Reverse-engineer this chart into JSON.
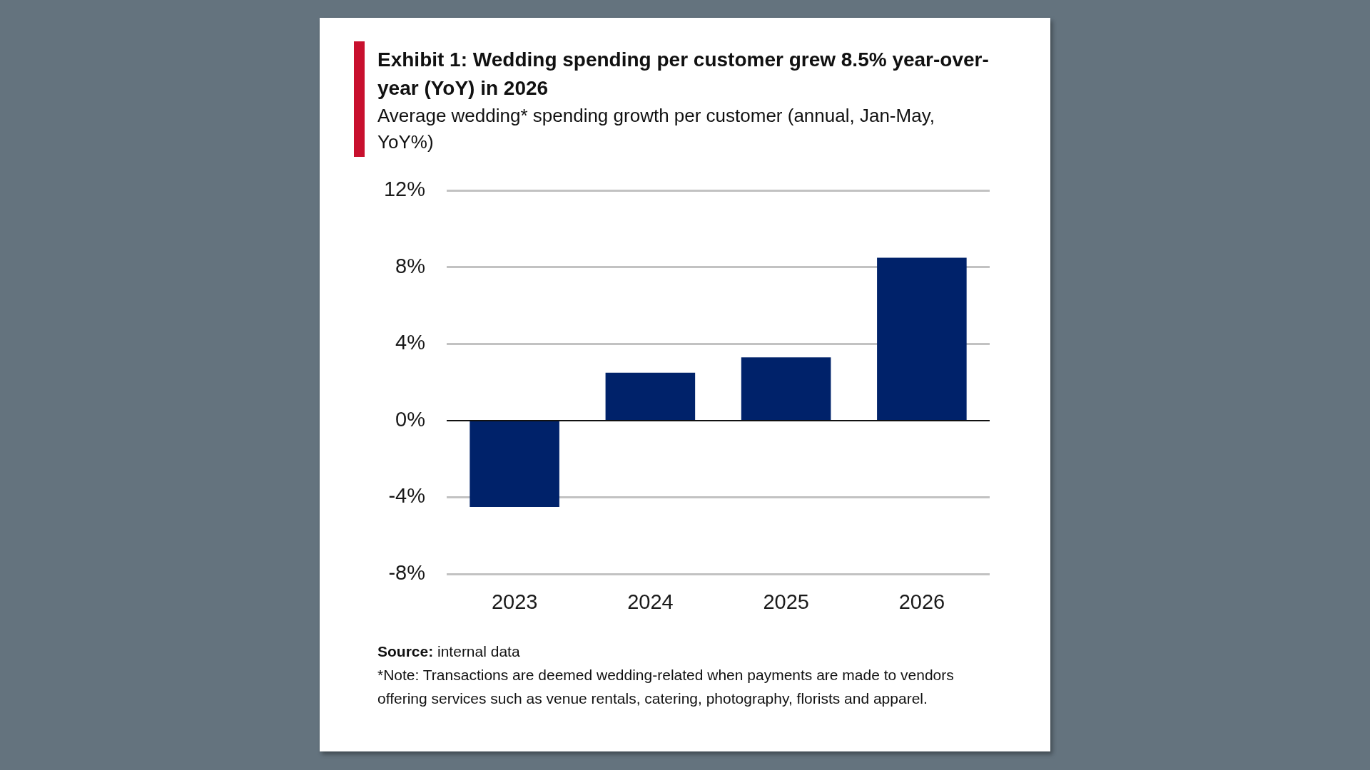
{
  "chart_data": {
    "type": "bar",
    "title": "Exhibit 1: Wedding spending per customer grew 8.5% year-over-year (YoY) in 2026",
    "subtitle": "Average wedding* spending growth per customer (annual, Jan-May, YoY%)",
    "categories": [
      "2023",
      "2024",
      "2025",
      "2026"
    ],
    "values": [
      -4.5,
      2.5,
      3.3,
      8.5
    ],
    "color": "#00226a",
    "ylim": [
      -8,
      12
    ],
    "yticks": [
      {
        "value": -8,
        "label": "-8%"
      },
      {
        "value": -4,
        "label": "-4%"
      },
      {
        "value": 0,
        "label": "0%"
      },
      {
        "value": 4,
        "label": "4%"
      },
      {
        "value": 8,
        "label": "8%"
      },
      {
        "value": 12,
        "label": "12%"
      }
    ],
    "grid": "y",
    "annotations": [
      "Source: internal data",
      "*Note: Transactions are deemed wedding-related when payments are made to vendors offering services such as venue rentals, catering, photography, florists and apparel."
    ]
  }
}
